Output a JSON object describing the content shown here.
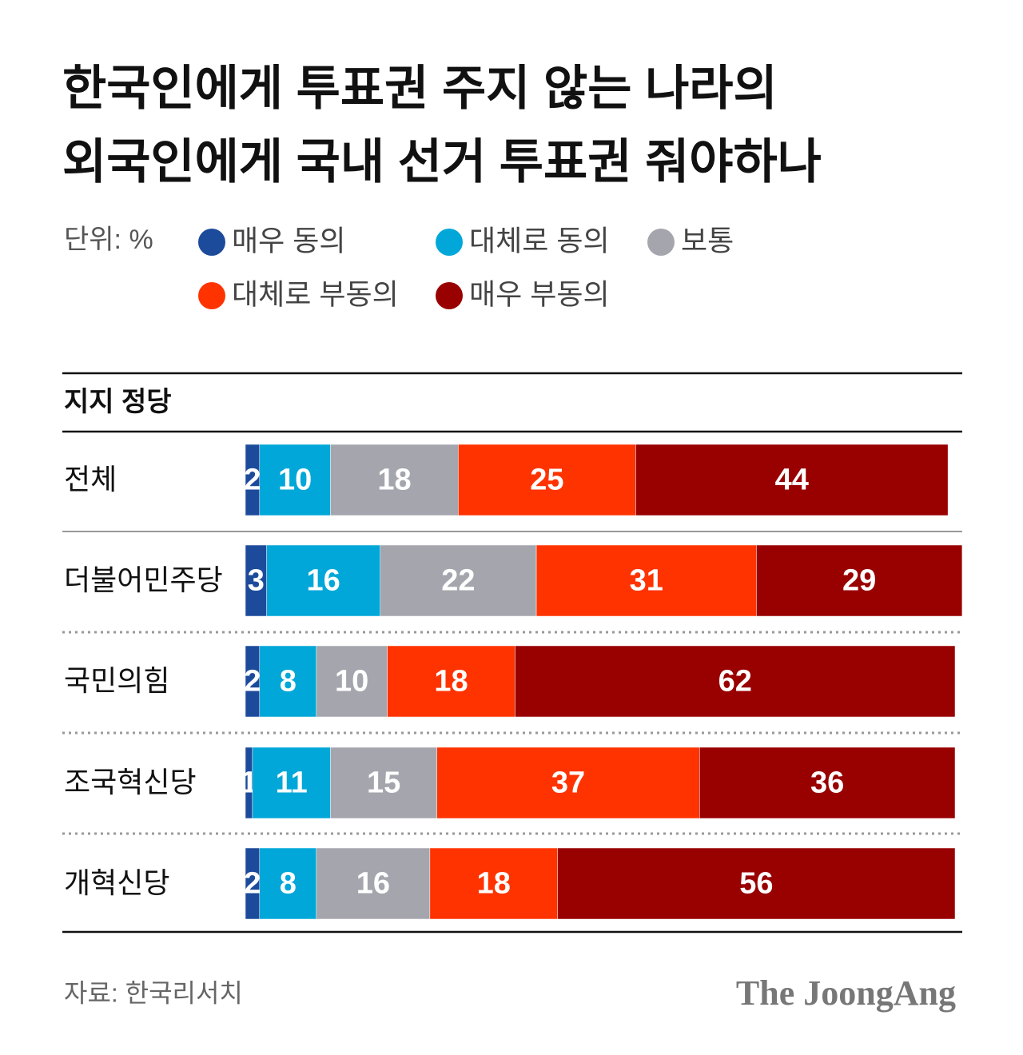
{
  "chart_data": {
    "type": "stacked-bar",
    "title": [
      "한국인에게 투표권 주지 않는 나라의",
      "외국인에게 국내 선거 투표권 줘야하나"
    ],
    "unit_label": "단위: %",
    "category_header": "지지 정당",
    "categories": [
      "전체",
      "더불어민주당",
      "국민의힘",
      "조국혁신당",
      "개혁신당"
    ],
    "series": [
      {
        "name": "매우 동의",
        "color": "#1d4b9b",
        "values": [
          2,
          3,
          2,
          1,
          2
        ]
      },
      {
        "name": "대체로 동의",
        "color": "#00a7d8",
        "values": [
          10,
          16,
          8,
          11,
          8
        ]
      },
      {
        "name": "보통",
        "color": "#a5a5ad",
        "values": [
          18,
          22,
          10,
          15,
          16
        ]
      },
      {
        "name": "대체로 부동의",
        "color": "#ff3300",
        "values": [
          25,
          31,
          18,
          37,
          18
        ]
      },
      {
        "name": "매우 부동의",
        "color": "#990000",
        "values": [
          44,
          29,
          62,
          36,
          56
        ]
      }
    ],
    "xlim": [
      0,
      100
    ],
    "source": "자료: 한국리서치",
    "brand": "The JoongAng"
  }
}
